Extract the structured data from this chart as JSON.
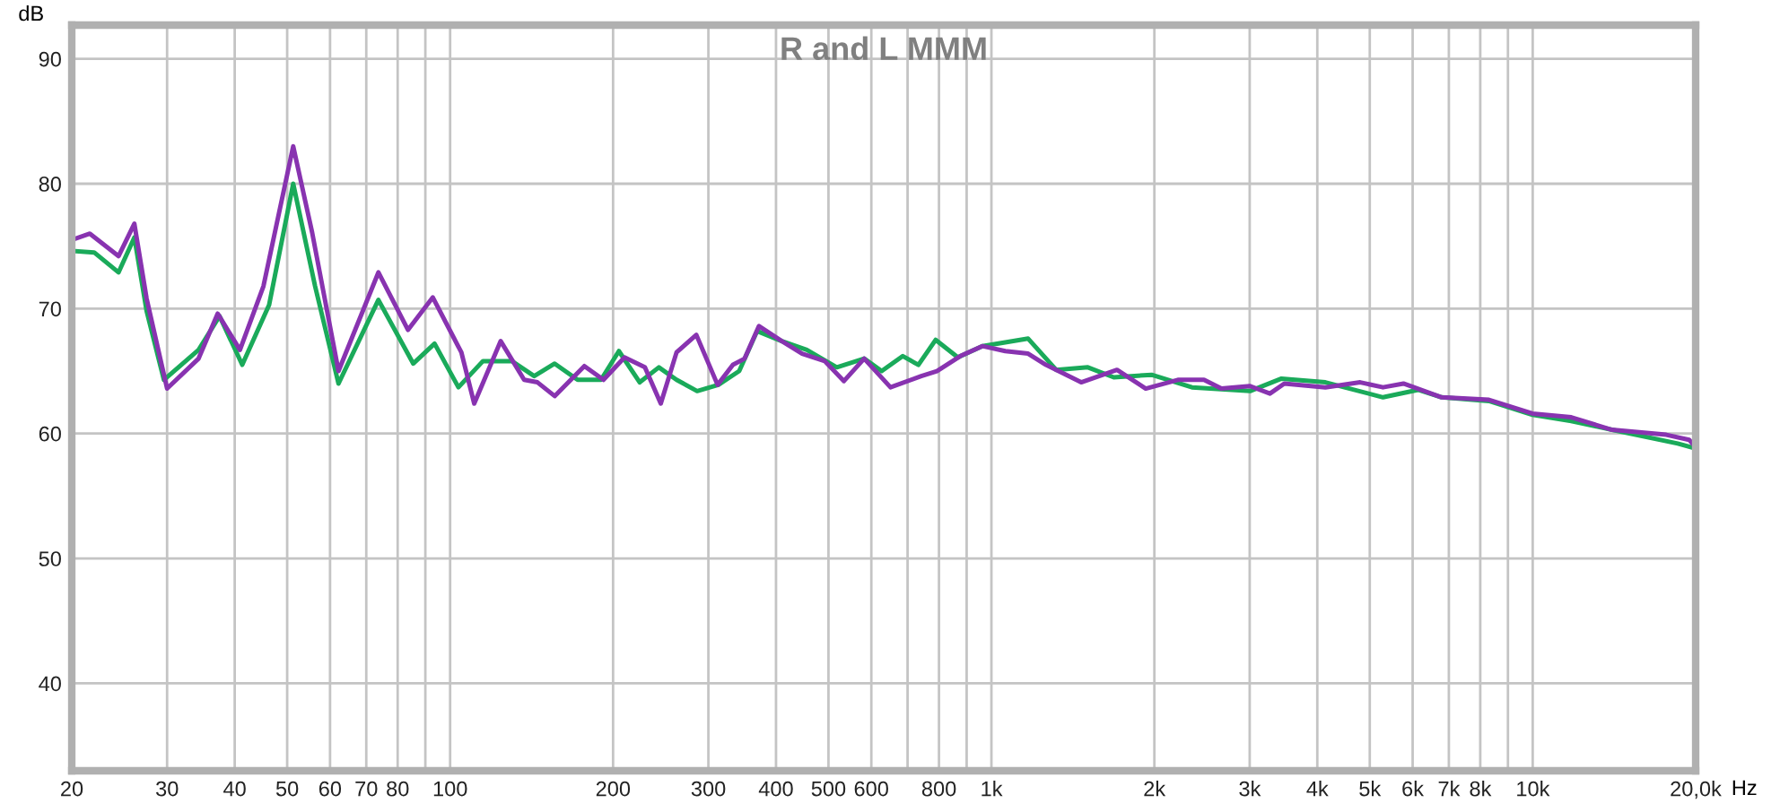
{
  "chart_data": {
    "type": "line",
    "title": "R and L MMM",
    "xlabel": "Hz",
    "ylabel": "dB",
    "log": "x",
    "xlim": [
      20,
      20000
    ],
    "ylim": [
      33,
      92.7
    ],
    "xticks": [
      20,
      30,
      40,
      50,
      60,
      70,
      80,
      {
        "value": 90,
        "label": null
      },
      100,
      200,
      300,
      400,
      500,
      600,
      {
        "value": 700,
        "label": null
      },
      800,
      {
        "value": 900,
        "label": null
      },
      {
        "value": 1000,
        "label": "1k"
      },
      {
        "value": 2000,
        "label": "2k"
      },
      {
        "value": 3000,
        "label": "3k"
      },
      {
        "value": 4000,
        "label": "4k"
      },
      {
        "value": 5000,
        "label": "5k"
      },
      {
        "value": 6000,
        "label": "6k"
      },
      {
        "value": 7000,
        "label": "7k"
      },
      {
        "value": 8000,
        "label": "8k"
      },
      {
        "value": 9000,
        "label": null
      },
      {
        "value": 10000,
        "label": "10k"
      },
      {
        "value": 20000,
        "label": "20,0k"
      }
    ],
    "yticks": [
      40,
      50,
      60,
      70,
      80,
      90
    ],
    "grid": true,
    "marker": "none",
    "line_style": "solid",
    "series": [
      {
        "color": "#1aaa5a",
        "x": [
          20.3,
          22,
          24.4,
          26.1,
          27.5,
          29.6,
          34.3,
          37.5,
          41.3,
          46.3,
          51.3,
          56.3,
          62.2,
          73.7,
          85.5,
          93.6,
          103.6,
          115,
          130,
          143,
          156,
          172,
          190,
          205,
          224,
          243,
          262,
          286,
          313,
          342,
          369,
          410,
          456,
          518,
          582,
          627,
          686,
          733,
          789,
          867,
          962,
          1169,
          1317,
          1507,
          1683,
          1976,
          2347,
          3004,
          3435,
          4140,
          5290,
          6140,
          6790,
          8300,
          9990,
          11780,
          14010,
          18530,
          20000
        ],
        "values": [
          74.6,
          74.5,
          72.9,
          75.7,
          69.8,
          64.3,
          66.7,
          69.4,
          65.5,
          70.3,
          80.0,
          71.8,
          64.0,
          70.7,
          65.6,
          67.2,
          63.7,
          65.8,
          65.8,
          64.6,
          65.6,
          64.3,
          64.3,
          66.6,
          64.1,
          65.3,
          64.3,
          63.4,
          63.9,
          65.0,
          68.2,
          67.4,
          66.7,
          65.3,
          66.0,
          65.0,
          66.2,
          65.5,
          67.5,
          66.1,
          67.0,
          67.6,
          65.1,
          65.3,
          64.5,
          64.7,
          63.7,
          63.4,
          64.4,
          64.1,
          62.9,
          63.5,
          62.9,
          62.6,
          61.5,
          61.0,
          60.3,
          59.2,
          58.8
        ]
      },
      {
        "color": "#8833b0",
        "x": [
          20.3,
          21.6,
          24.4,
          26.1,
          27.5,
          30,
          34.3,
          37.2,
          40.9,
          45.2,
          51.3,
          55.6,
          62.2,
          73.7,
          83.6,
          92.9,
          104.9,
          110.8,
          124,
          137,
          145,
          156,
          177,
          192,
          210,
          229,
          245,
          262,
          285,
          312,
          333,
          350,
          372,
          410,
          447,
          492,
          534,
          582,
          651,
          742,
          793,
          876,
          962,
          1061,
          1169,
          1261,
          1465,
          1706,
          1928,
          2210,
          2470,
          2660,
          3004,
          3270,
          3476,
          4140,
          4800,
          5290,
          5770,
          6790,
          8300,
          9990,
          11780,
          14010,
          17650,
          19450,
          20000
        ],
        "values": [
          75.6,
          76.0,
          74.2,
          76.8,
          70.8,
          63.6,
          66.0,
          69.6,
          66.7,
          71.8,
          83.0,
          76.1,
          65.0,
          72.9,
          68.3,
          70.9,
          66.5,
          62.4,
          67.4,
          64.3,
          64.1,
          63.0,
          65.4,
          64.3,
          66.1,
          65.3,
          62.4,
          66.5,
          67.9,
          63.9,
          65.5,
          66.0,
          68.6,
          67.4,
          66.4,
          65.8,
          64.2,
          66.0,
          63.7,
          64.6,
          65.0,
          66.2,
          67.0,
          66.6,
          66.4,
          65.5,
          64.1,
          65.1,
          63.6,
          64.3,
          64.3,
          63.6,
          63.8,
          63.2,
          64.0,
          63.7,
          64.1,
          63.7,
          64.0,
          62.9,
          62.7,
          61.6,
          61.3,
          60.3,
          59.9,
          59.5,
          58.9
        ]
      }
    ]
  }
}
